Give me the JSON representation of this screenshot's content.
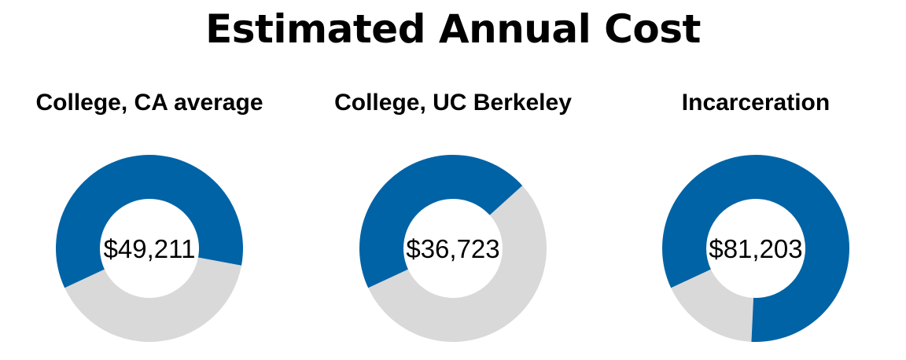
{
  "title": "Estimated Annual Cost",
  "colors": {
    "filled": "#0063a6",
    "remainder": "#d9d9d9"
  },
  "chart_data": [
    {
      "type": "pie",
      "title": "College, CA average",
      "center_label": "$49,211",
      "values": [
        49211,
        32992
      ]
    },
    {
      "type": "pie",
      "title": "College, UC Berkeley",
      "center_label": "$36,723",
      "values": [
        36723,
        44480
      ]
    },
    {
      "type": "pie",
      "title": "Incarceration",
      "center_label": "$81,203",
      "values": [
        81203,
        17000
      ]
    }
  ]
}
